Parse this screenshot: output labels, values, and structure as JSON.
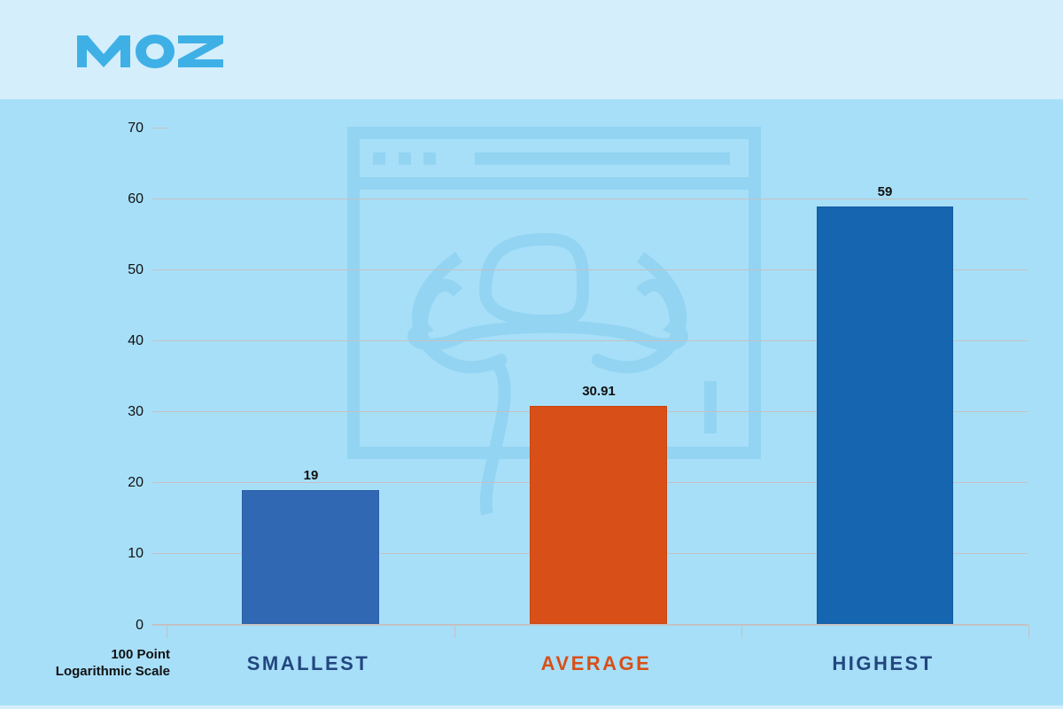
{
  "brand": {
    "logo_text": "MOZ",
    "logo_color": "#3fb0e6"
  },
  "colors": {
    "header_bg": "#d4eefb",
    "chart_bg": "#a7dff8",
    "smallest": "#3068b3",
    "average": "#d84f17",
    "highest": "#1565b0",
    "smallest_label": "#22467f",
    "average_label": "#d84f17",
    "highest_label": "#22467f"
  },
  "chart_data": {
    "type": "bar",
    "title": "",
    "categories": [
      "SMALLEST",
      "AVERAGE",
      "HIGHEST"
    ],
    "values": [
      19,
      30.91,
      59
    ],
    "data_labels": [
      "19",
      "30.91",
      "59"
    ],
    "xlabel": "",
    "ylabel": "100 Point Logarithmic Scale",
    "ylim": [
      0,
      70
    ],
    "yticks": [
      0,
      10,
      20,
      30,
      40,
      50,
      60,
      70
    ],
    "grid": true,
    "legend": "none"
  },
  "axis": {
    "note_line1": "100 Point",
    "note_line2": "Logarithmic Scale",
    "ytick_labels": [
      "70",
      "60",
      "50",
      "40",
      "30",
      "20",
      "10",
      "0"
    ]
  },
  "icons": {
    "watermark": "browser-flexing-figure-icon"
  }
}
